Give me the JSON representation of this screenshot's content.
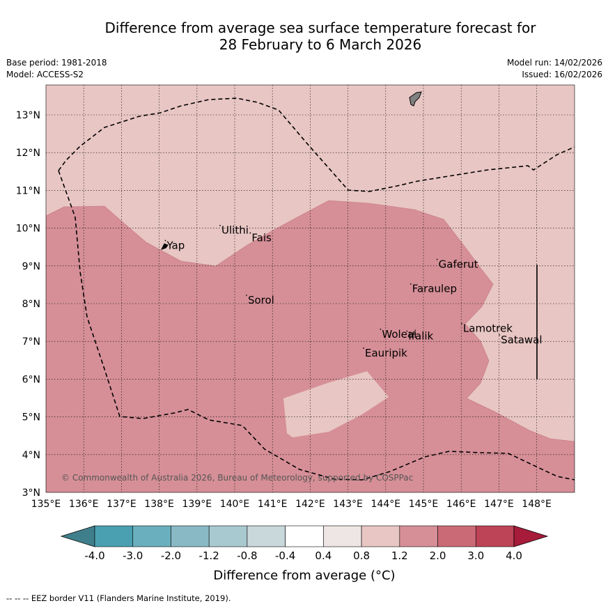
{
  "title": {
    "line1": "Difference from average sea surface temperature forecast for",
    "line2": "28 February to 6 March 2026"
  },
  "meta_left": {
    "base_period": "Base period: 1981-2018",
    "model": "Model: ACCESS-S2"
  },
  "meta_right": {
    "model_run": "Model run: 14/02/2026",
    "issued": "Issued: 16/02/2026"
  },
  "map": {
    "lon_range": [
      135,
      149
    ],
    "lat_range": [
      3,
      13.8
    ],
    "x_ticks": [
      "135°E",
      "136°E",
      "137°E",
      "138°E",
      "139°E",
      "140°E",
      "141°E",
      "142°E",
      "143°E",
      "144°E",
      "145°E",
      "146°E",
      "147°E",
      "148°E"
    ],
    "y_ticks": [
      "3°N",
      "4°N",
      "5°N",
      "6°N",
      "7°N",
      "8°N",
      "9°N",
      "10°N",
      "11°N",
      "12°N",
      "13°N"
    ],
    "colors": {
      "light_anomaly": "#e8c6c3",
      "mid_anomaly": "#d68f97"
    },
    "places": [
      {
        "name": "Yap",
        "lon": 138.2,
        "lat": 9.45
      },
      {
        "name": "Ulithi",
        "lon": 139.65,
        "lat": 9.85
      },
      {
        "name": "Fais",
        "lon": 140.45,
        "lat": 9.65
      },
      {
        "name": "Sorol",
        "lon": 140.35,
        "lat": 8.0
      },
      {
        "name": "Gaferut",
        "lon": 145.4,
        "lat": 8.95
      },
      {
        "name": "Faraulep",
        "lon": 144.7,
        "lat": 8.3
      },
      {
        "name": "Woleai",
        "lon": 143.9,
        "lat": 7.1
      },
      {
        "name": "Ifalik",
        "lon": 144.6,
        "lat": 7.05
      },
      {
        "name": "Lamotrek",
        "lon": 146.05,
        "lat": 7.25
      },
      {
        "name": "Satawal",
        "lon": 147.05,
        "lat": 6.95
      },
      {
        "name": "Eauripik",
        "lon": 143.45,
        "lat": 6.6
      }
    ],
    "copyright": "© Commonwealth of Australia 2026, Bureau of Meteorology, supported by COSPPac"
  },
  "colorbar": {
    "colors": [
      "#3f7f8b",
      "#4aa0b1",
      "#6aafbd",
      "#8ab9c6",
      "#a9c9d0",
      "#c8d8db",
      "#ffffff",
      "#ede6e4",
      "#e8c6c3",
      "#d68f97",
      "#cb6a77",
      "#bd4457",
      "#a61c3a"
    ],
    "labels": [
      "-4.0",
      "-3.0",
      "-2.0",
      "-1.2",
      "-0.8",
      "-0.4",
      "0.4",
      "0.8",
      "1.2",
      "2.0",
      "3.0",
      "4.0"
    ],
    "title": "Difference from average (°C)"
  },
  "footer": "--  --  -- EEZ border V11 (Flanders Marine Institute, 2019)."
}
